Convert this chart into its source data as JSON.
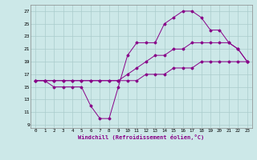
{
  "xlabel": "Windchill (Refroidissement éolien,°C)",
  "background_color": "#cce8e8",
  "grid_color": "#aacccc",
  "line_color": "#880088",
  "x_ticks": [
    0,
    1,
    2,
    3,
    4,
    5,
    6,
    7,
    8,
    9,
    10,
    11,
    12,
    13,
    14,
    15,
    16,
    17,
    18,
    19,
    20,
    21,
    22,
    23
  ],
  "y_ticks": [
    9,
    11,
    13,
    15,
    17,
    19,
    21,
    23,
    25,
    27
  ],
  "xlim": [
    -0.5,
    23.5
  ],
  "ylim": [
    8.5,
    28
  ],
  "line1_x": [
    0,
    1,
    2,
    3,
    4,
    5,
    6,
    7,
    8,
    9,
    10,
    11,
    12,
    13,
    14,
    15,
    16,
    17,
    18,
    19,
    20,
    21,
    22,
    23
  ],
  "line1_y": [
    16,
    16,
    16,
    16,
    16,
    16,
    16,
    16,
    16,
    16,
    16,
    16,
    17,
    17,
    17,
    18,
    18,
    18,
    19,
    19,
    19,
    19,
    19,
    19
  ],
  "line2_x": [
    0,
    1,
    2,
    3,
    4,
    5,
    6,
    7,
    8,
    9,
    10,
    11,
    12,
    13,
    14,
    15,
    16,
    17,
    18,
    19,
    20,
    21,
    22,
    23
  ],
  "line2_y": [
    16,
    16,
    16,
    16,
    16,
    16,
    16,
    16,
    16,
    16,
    17,
    18,
    19,
    20,
    20,
    21,
    21,
    22,
    22,
    22,
    22,
    22,
    21,
    19
  ],
  "line3_x": [
    0,
    1,
    2,
    3,
    4,
    5,
    6,
    7,
    8,
    9,
    10,
    11,
    12,
    13,
    14,
    15,
    16,
    17,
    18,
    19,
    20,
    21,
    22,
    23
  ],
  "line3_y": [
    16,
    16,
    15,
    15,
    15,
    15,
    12,
    10,
    10,
    15,
    20,
    22,
    22,
    22,
    25,
    26,
    27,
    27,
    26,
    24,
    24,
    22,
    21,
    19
  ]
}
